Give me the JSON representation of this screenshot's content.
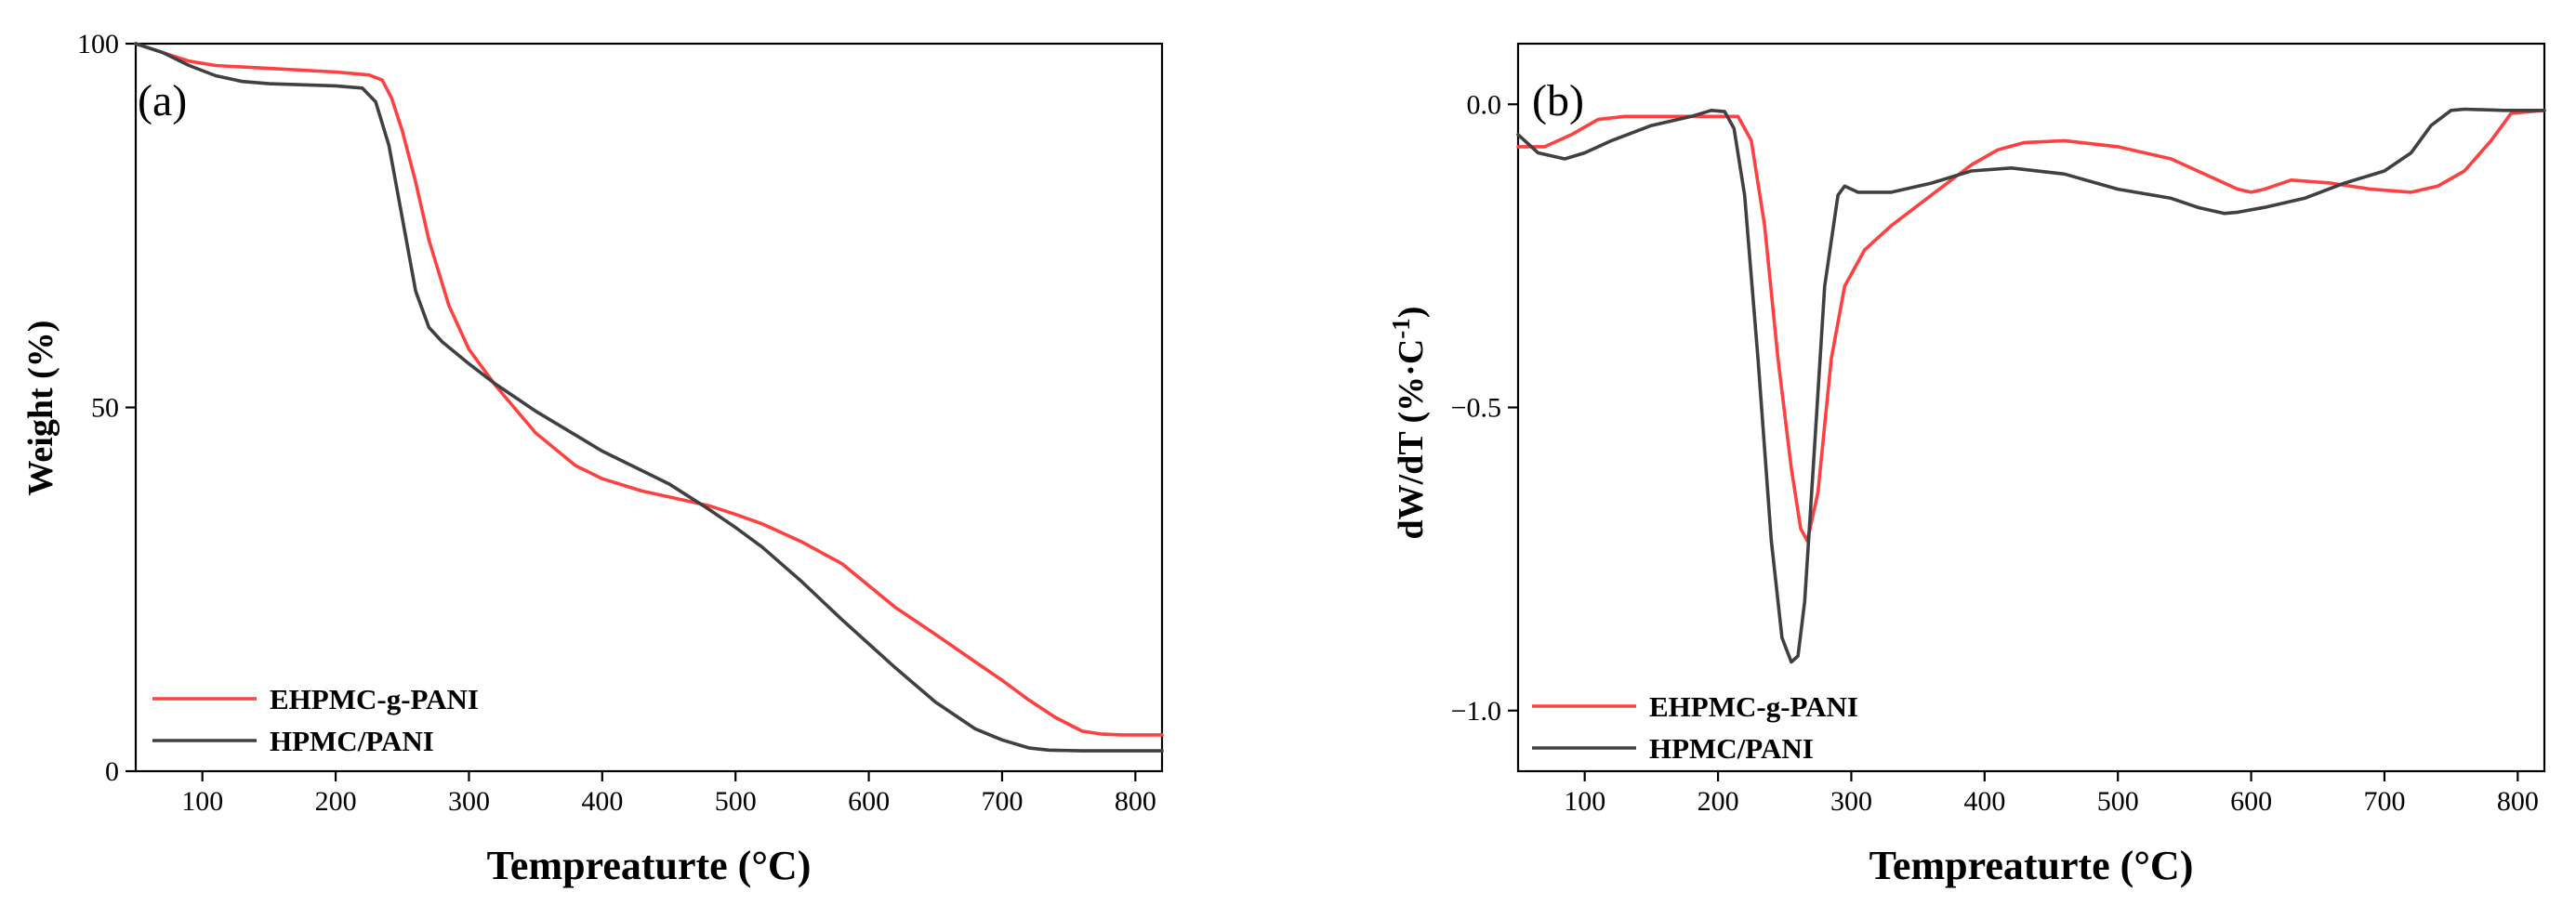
{
  "chart_data": [
    {
      "panel_label": "(a)",
      "type": "line",
      "xlabel": "Tempreaturte (°C)",
      "ylabel": "Weight (%)",
      "xlim": [
        50,
        820
      ],
      "ylim": [
        0,
        100
      ],
      "xticks": [
        100,
        200,
        300,
        400,
        500,
        600,
        700,
        800
      ],
      "yticks": [
        0,
        50,
        100
      ],
      "xtick_labels": [
        "100",
        "200",
        "300",
        "400",
        "500",
        "600",
        "700",
        "800"
      ],
      "ytick_labels": [
        "0",
        "50",
        "100"
      ],
      "legend_position": "bottom-left",
      "series": [
        {
          "name": "EHPMC-g-PANI",
          "color": "#ff4040",
          "x": [
            50,
            70,
            90,
            110,
            150,
            200,
            225,
            235,
            242,
            250,
            260,
            270,
            285,
            300,
            320,
            350,
            380,
            400,
            430,
            460,
            480,
            500,
            520,
            550,
            580,
            600,
            620,
            650,
            680,
            700,
            720,
            740,
            760,
            775,
            790,
            820
          ],
          "y": [
            100,
            98.8,
            97.6,
            97.0,
            96.6,
            96.1,
            95.7,
            95.0,
            92.5,
            88,
            81,
            73,
            64,
            58,
            53,
            46.5,
            42,
            40.2,
            38.5,
            37.3,
            36.5,
            35.3,
            34,
            31.5,
            28.5,
            25.5,
            22.5,
            18.8,
            15,
            12.5,
            9.8,
            7.4,
            5.5,
            5.1,
            5.0,
            5.0
          ]
        },
        {
          "name": "HPMC/PANI",
          "color": "#404040",
          "x": [
            50,
            70,
            90,
            110,
            130,
            150,
            200,
            220,
            230,
            240,
            250,
            260,
            270,
            280,
            300,
            320,
            350,
            400,
            450,
            480,
            500,
            520,
            550,
            580,
            600,
            620,
            650,
            680,
            700,
            720,
            735,
            760,
            820
          ],
          "y": [
            100,
            98.8,
            97,
            95.6,
            94.8,
            94.5,
            94.2,
            93.9,
            92,
            86,
            76,
            66,
            61,
            59,
            56,
            53.2,
            49.5,
            44,
            39.5,
            36,
            33.5,
            30.8,
            26,
            20.8,
            17.5,
            14.2,
            9.5,
            5.8,
            4.3,
            3.2,
            2.9,
            2.8,
            2.8
          ]
        }
      ]
    },
    {
      "panel_label": "(b)",
      "type": "line",
      "xlabel": "Tempreaturte (°C)",
      "ylabel_main": "dW/dT (%·C",
      "ylabel_sup": "-1",
      "ylabel_tail": ")",
      "xlim": [
        50,
        820
      ],
      "ylim": [
        -1.1,
        0.1
      ],
      "xticks": [
        100,
        200,
        300,
        400,
        500,
        600,
        700,
        800
      ],
      "yticks": [
        -1.0,
        -0.5,
        0.0
      ],
      "xtick_labels": [
        "100",
        "200",
        "300",
        "400",
        "500",
        "600",
        "700",
        "800"
      ],
      "ytick_labels": [
        "−1.0",
        "−0.5",
        "0.0"
      ],
      "legend_position": "bottom-left",
      "series": [
        {
          "name": "EHPMC-g-PANI",
          "color": "#ff4040",
          "x": [
            50,
            70,
            90,
            110,
            130,
            150,
            180,
            200,
            215,
            225,
            235,
            245,
            255,
            262,
            267,
            275,
            285,
            295,
            310,
            330,
            360,
            390,
            410,
            430,
            460,
            500,
            540,
            570,
            590,
            600,
            610,
            630,
            660,
            690,
            720,
            740,
            760,
            780,
            795,
            820
          ],
          "y": [
            -0.07,
            -0.07,
            -0.05,
            -0.025,
            -0.02,
            -0.02,
            -0.02,
            -0.02,
            -0.02,
            -0.06,
            -0.2,
            -0.42,
            -0.6,
            -0.7,
            -0.72,
            -0.64,
            -0.42,
            -0.3,
            -0.24,
            -0.2,
            -0.15,
            -0.1,
            -0.075,
            -0.063,
            -0.06,
            -0.07,
            -0.09,
            -0.12,
            -0.14,
            -0.145,
            -0.14,
            -0.125,
            -0.13,
            -0.14,
            -0.145,
            -0.135,
            -0.11,
            -0.06,
            -0.015,
            -0.01
          ]
        },
        {
          "name": "HPMC/PANI",
          "color": "#404040",
          "x": [
            50,
            65,
            85,
            100,
            120,
            150,
            180,
            195,
            205,
            212,
            220,
            230,
            240,
            248,
            255,
            260,
            265,
            272,
            280,
            290,
            295,
            305,
            330,
            360,
            390,
            420,
            460,
            500,
            540,
            560,
            580,
            590,
            610,
            640,
            670,
            700,
            720,
            735,
            750,
            760,
            790,
            820
          ],
          "y": [
            -0.05,
            -0.08,
            -0.09,
            -0.08,
            -0.06,
            -0.035,
            -0.02,
            -0.01,
            -0.012,
            -0.04,
            -0.15,
            -0.42,
            -0.72,
            -0.88,
            -0.92,
            -0.91,
            -0.82,
            -0.58,
            -0.3,
            -0.15,
            -0.135,
            -0.145,
            -0.145,
            -0.13,
            -0.11,
            -0.105,
            -0.115,
            -0.14,
            -0.155,
            -0.17,
            -0.18,
            -0.178,
            -0.17,
            -0.155,
            -0.13,
            -0.11,
            -0.08,
            -0.035,
            -0.01,
            -0.008,
            -0.01,
            -0.01
          ]
        }
      ]
    }
  ]
}
